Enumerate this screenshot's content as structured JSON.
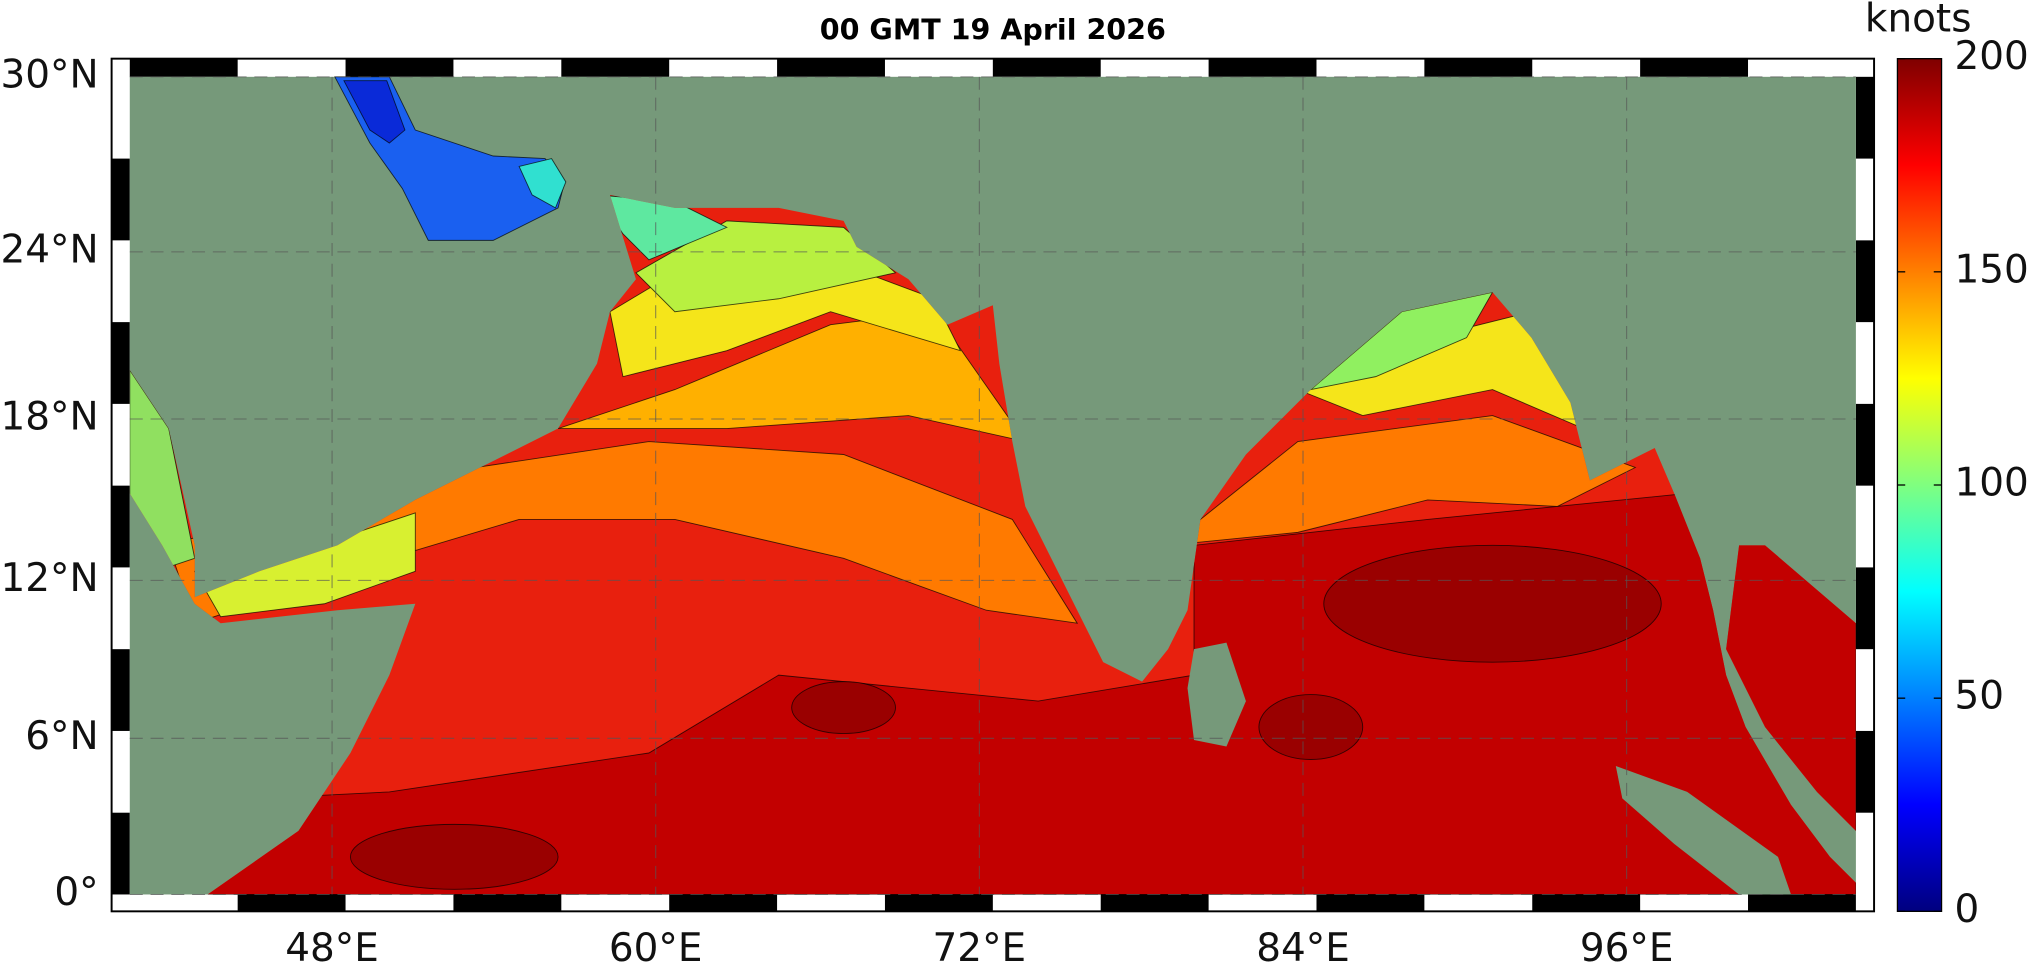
{
  "map": {
    "title": "00 GMT 19 April 2026",
    "lat_range": [
      0,
      30
    ],
    "lon_range": [
      40.5,
      104.5
    ],
    "lat_ticks": [
      {
        "value": 0,
        "label": "0°"
      },
      {
        "value": 6,
        "label": "6°N"
      },
      {
        "value": 12,
        "label": "12°N"
      },
      {
        "value": 18,
        "label": "18°N"
      },
      {
        "value": 24,
        "label": "24°N"
      },
      {
        "value": 30,
        "label": "30°N"
      }
    ],
    "lon_ticks": [
      {
        "value": 48,
        "label": "48°E"
      },
      {
        "value": 60,
        "label": "60°E"
      },
      {
        "value": 72,
        "label": "72°E"
      },
      {
        "value": 84,
        "label": "84°E"
      },
      {
        "value": 96,
        "label": "96°E"
      }
    ],
    "colorbar": {
      "label": "knots",
      "lim": [
        0,
        200
      ],
      "ticks": [
        0,
        50,
        100,
        150,
        200
      ]
    }
  }
}
